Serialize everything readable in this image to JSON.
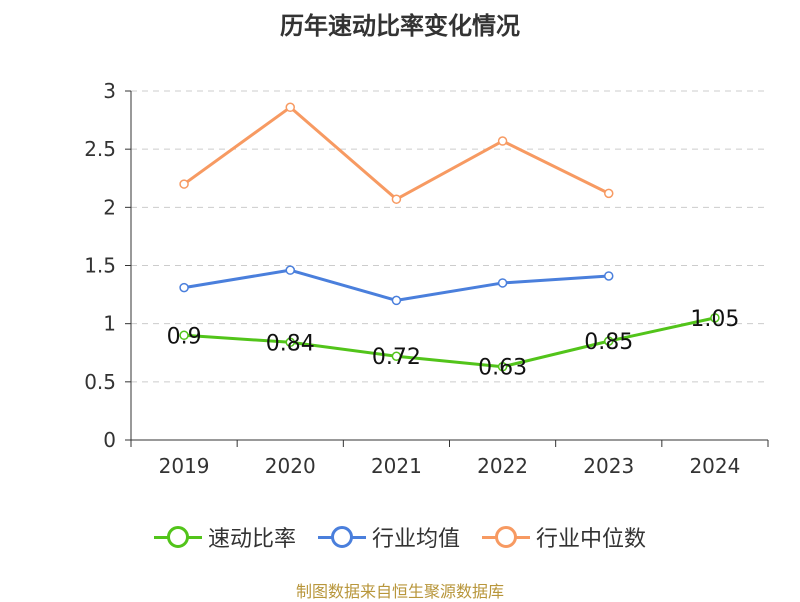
{
  "chart_data": {
    "type": "line",
    "title": "历年速动比率变化情况",
    "categories": [
      "2019",
      "2020",
      "2021",
      "2022",
      "2023",
      "2024"
    ],
    "ylim": [
      0,
      3
    ],
    "yticks": [
      "0",
      "0.5",
      "1",
      "1.5",
      "2",
      "2.5",
      "3"
    ],
    "series": [
      {
        "name": "速动比率",
        "color": "#52c41a",
        "values": [
          0.9,
          0.84,
          0.72,
          0.63,
          0.85,
          1.05
        ],
        "labels": [
          "0.9",
          "0.84",
          "0.72",
          "0.63",
          "0.85",
          "1.05"
        ]
      },
      {
        "name": "行业均值",
        "color": "#4a7fdc",
        "values": [
          1.31,
          1.46,
          1.2,
          1.35,
          1.41,
          null
        ]
      },
      {
        "name": "行业中位数",
        "color": "#f79a62",
        "values": [
          2.2,
          2.86,
          2.07,
          2.57,
          2.12,
          null
        ]
      }
    ],
    "grid": true,
    "legend_position": "bottom"
  },
  "source_text": "制图数据来自恒生聚源数据库"
}
